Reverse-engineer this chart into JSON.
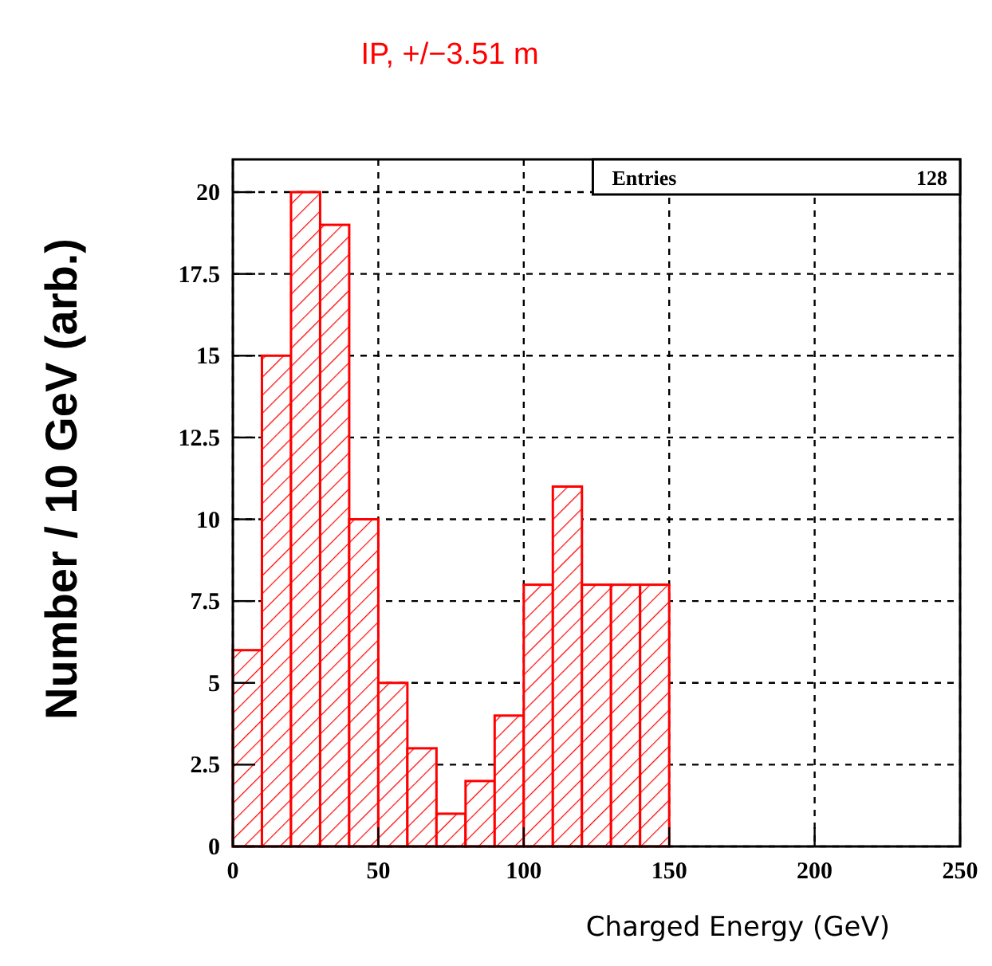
{
  "chart_data": {
    "type": "histogram",
    "title": "IP, +/−3.51 m",
    "xlabel": "Charged Energy (GeV)",
    "ylabel": "Number / 10 GeV (arb.)",
    "bins": [
      0,
      10,
      20,
      30,
      40,
      50,
      60,
      70,
      80,
      90,
      100,
      110,
      120,
      130,
      140,
      150
    ],
    "values": [
      6,
      15,
      20,
      19,
      10,
      5,
      3,
      1,
      2,
      4,
      8,
      11,
      8,
      8,
      8
    ],
    "color": "#ff0000",
    "xlim": [
      0,
      250
    ],
    "xticks": [
      0,
      50,
      100,
      150,
      200,
      250
    ],
    "ylim": [
      0,
      21
    ],
    "yticks": [
      0,
      2.5,
      5,
      7.5,
      10,
      12.5,
      15,
      17.5,
      20
    ],
    "grid": true,
    "annotations": [
      "Entries",
      "128"
    ]
  }
}
